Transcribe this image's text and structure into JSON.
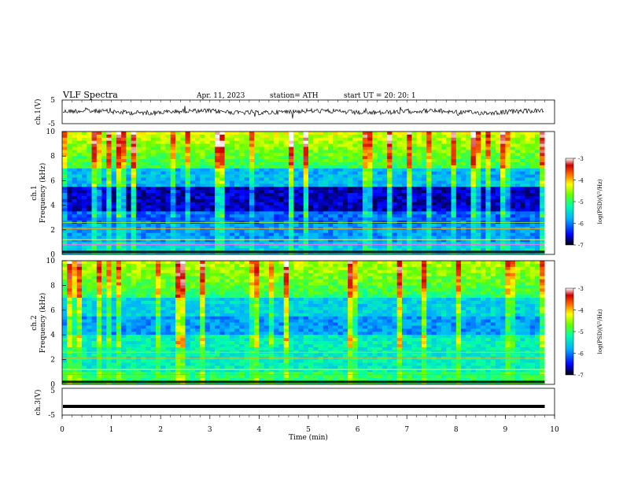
{
  "header": {
    "title": "VLF  Spectra",
    "date": "Apr. 11, 2023",
    "station": "station= ATH",
    "start": "start  UT  =    20: 20: 1"
  },
  "chart_data": [
    {
      "type": "line",
      "panel": "ch1-waveform",
      "ylabel": "ch.1(V)",
      "ylim": [
        -5,
        5
      ],
      "yticks": [
        "5",
        "-5"
      ],
      "xlim": [
        0,
        10
      ],
      "color": "#000000",
      "description_values": "noisy waveform around 0 V, amplitude ~±1 V with occasional spikes"
    },
    {
      "type": "heatmap",
      "panel": "ch1-spectrogram",
      "ylabel": "ch.1\nFrequency  (kHz)",
      "ylim": [
        0,
        10
      ],
      "yticks": [
        "0",
        "2",
        "4",
        "6",
        "8",
        "10"
      ],
      "xlim": [
        0,
        9.8
      ],
      "colorbar": {
        "label": "log(PSD)(V²/Hz)",
        "ticks": [
          "-3",
          "-4",
          "-5",
          "-6",
          "-7"
        ],
        "range": [
          -7,
          -3
        ]
      }
    },
    {
      "type": "heatmap",
      "panel": "ch2-spectrogram",
      "ylabel": "ch.2\nFrequency  (kHz)",
      "ylim": [
        0,
        10
      ],
      "yticks": [
        "0",
        "2",
        "4",
        "6",
        "8",
        "10"
      ],
      "xlim": [
        0,
        9.8
      ],
      "colorbar": {
        "label": "log(PSD)(V²/Hz)",
        "ticks": [
          "-3",
          "-4",
          "-5",
          "-6",
          "-7"
        ],
        "range": [
          -7,
          -3
        ]
      }
    },
    {
      "type": "line",
      "panel": "ch3-waveform",
      "ylabel": "ch.3(V)",
      "ylim": [
        -5,
        5
      ],
      "yticks": [
        "5",
        "-5"
      ],
      "xlim": [
        0,
        10
      ],
      "value": -2,
      "color": "#000000"
    }
  ],
  "xaxis": {
    "label": "Time  (min)",
    "ticks": [
      "0",
      "1",
      "2",
      "3",
      "4",
      "5",
      "6",
      "7",
      "8",
      "9",
      "10"
    ],
    "range": [
      0,
      10
    ]
  },
  "colors": {
    "stops": [
      "#000040",
      "#0000ff",
      "#00aaff",
      "#00ffaa",
      "#55ff00",
      "#ffff00",
      "#ff8800",
      "#ff0000",
      "#ffffff"
    ]
  }
}
